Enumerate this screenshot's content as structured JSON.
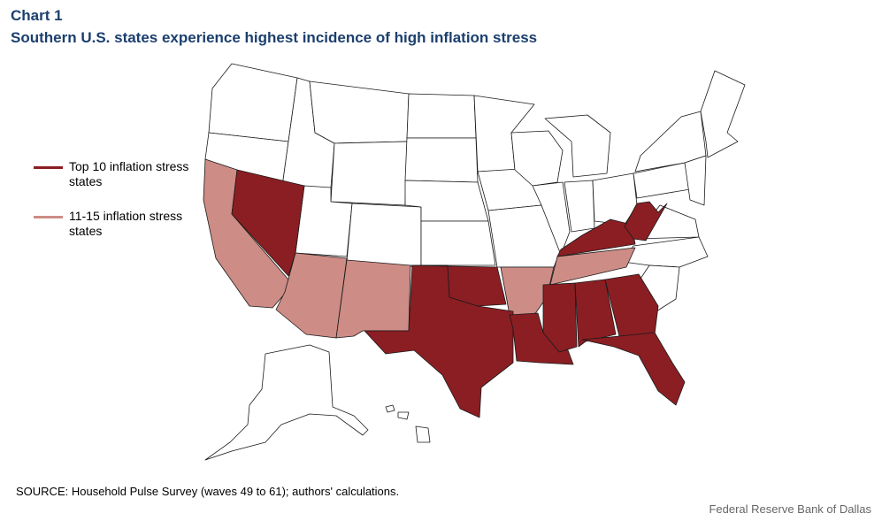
{
  "chart_number": "Chart 1",
  "title": "Southern U.S. states experience highest incidence of high inflation stress",
  "legend": [
    {
      "label": "Top 10 inflation stress states",
      "color": "#8b1e23"
    },
    {
      "label": "11-15 inflation stress states",
      "color": "#cd8c85"
    }
  ],
  "colors": {
    "top10": "#8b1e23",
    "rank11_15": "#cd8c85",
    "other": "#ffffff",
    "border": "#1a1a1a"
  },
  "categories": {
    "top10": [
      "Nevada",
      "Texas",
      "Oklahoma",
      "Louisiana",
      "Mississippi",
      "Alabama",
      "Georgia",
      "Florida",
      "Kentucky",
      "West Virginia"
    ],
    "rank11_15": [
      "California",
      "Arizona",
      "New Mexico",
      "Arkansas",
      "Tennessee"
    ]
  },
  "source": "SOURCE: Household Pulse Survey (waves 49 to 61); authors' calculations.",
  "credit": "Federal Reserve Bank of Dallas"
}
